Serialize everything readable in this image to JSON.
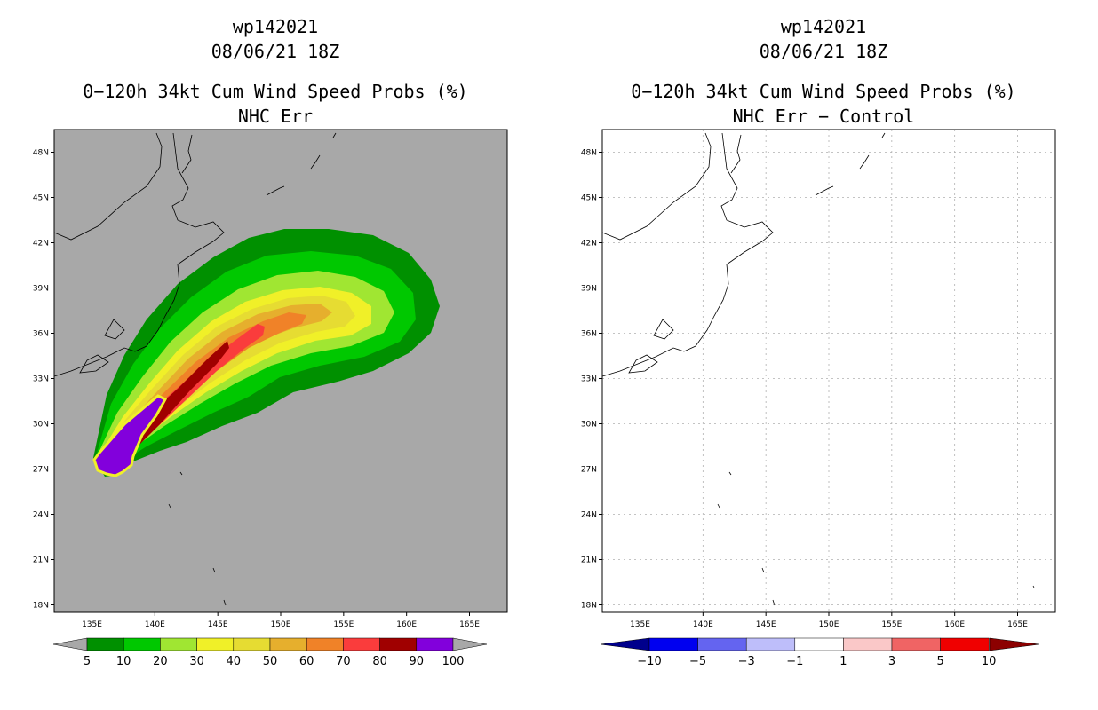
{
  "left": {
    "storm_id": "wp142021",
    "datetime": "08/06/21 18Z",
    "product": "0−120h 34kt Cum Wind Speed Probs (%)",
    "subtitle": "NHC Err",
    "colorbar": {
      "labels": [
        "5",
        "10",
        "20",
        "30",
        "40",
        "50",
        "60",
        "70",
        "80",
        "90",
        "100"
      ],
      "colors": [
        "#009000",
        "#00c800",
        "#a0e632",
        "#f0f028",
        "#e6dc32",
        "#e6af2d",
        "#f08228",
        "#fa3c3c",
        "#a00000",
        "#8200dc"
      ]
    }
  },
  "right": {
    "storm_id": "wp142021",
    "datetime": "08/06/21 18Z",
    "product": "0−120h 34kt Cum Wind Speed Probs (%)",
    "subtitle": "NHC Err − Control",
    "colorbar": {
      "labels": [
        "−10",
        "−5",
        "−3",
        "−1",
        "1",
        "3",
        "5",
        "10"
      ],
      "colors": [
        "#00008c",
        "#0000f0",
        "#6464f0",
        "#bebefa",
        "#ffffff",
        "#fac8c8",
        "#f06464",
        "#f00000",
        "#8c0000"
      ]
    }
  },
  "axes": {
    "lat_labels": [
      "48N",
      "45N",
      "42N",
      "39N",
      "36N",
      "33N",
      "30N",
      "27N",
      "24N",
      "21N",
      "18N"
    ],
    "lon_labels": [
      "135E",
      "140E",
      "145E",
      "150E",
      "155E",
      "160E",
      "165E"
    ],
    "lat_range": [
      17.5,
      49.5
    ],
    "lon_range": [
      132,
      168
    ]
  }
}
